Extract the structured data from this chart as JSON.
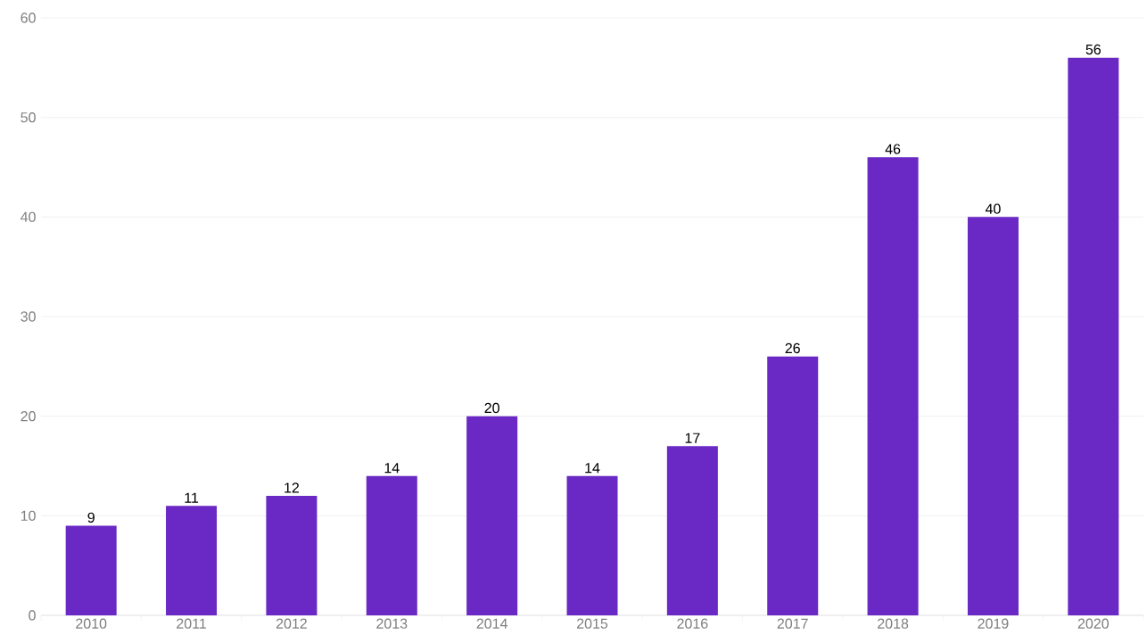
{
  "chart_data": {
    "type": "bar",
    "categories": [
      "2010",
      "2011",
      "2012",
      "2013",
      "2014",
      "2015",
      "2016",
      "2017",
      "2018",
      "2019",
      "2020"
    ],
    "values": [
      9,
      11,
      12,
      14,
      20,
      14,
      17,
      26,
      46,
      40,
      56
    ],
    "color": "#6a28c4",
    "ylim": [
      0,
      60
    ],
    "yticks": [
      0,
      10,
      20,
      30,
      40,
      50,
      60
    ],
    "grid": "y",
    "data_labels": true
  }
}
